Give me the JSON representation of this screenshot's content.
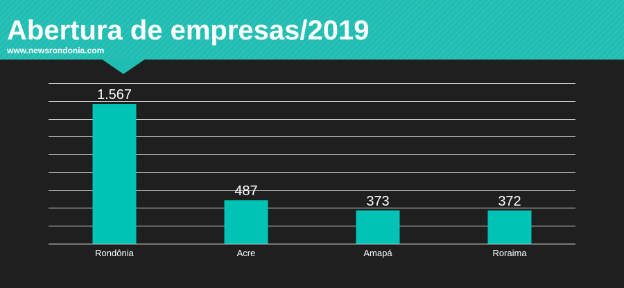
{
  "header": {
    "title": "Abertura de empresas/2019",
    "subtitle": "www.newsrondonia.com"
  },
  "colors": {
    "header": "#20bdb2",
    "bar": "#00c2b5",
    "background": "#1f1f1f",
    "grid": "#d9d9d9",
    "text": "#ffffff"
  },
  "chart_data": {
    "type": "bar",
    "title": "Abertura de empresas/2019",
    "xlabel": "",
    "ylabel": "",
    "categories": [
      "Rondônia",
      "Acre",
      "Amapá",
      "Roraima"
    ],
    "values": [
      1567,
      487,
      373,
      372
    ],
    "value_labels": [
      "1.567",
      "487",
      "373",
      "372"
    ],
    "ylim": [
      0,
      1800
    ],
    "grid": true,
    "legend": "none"
  }
}
